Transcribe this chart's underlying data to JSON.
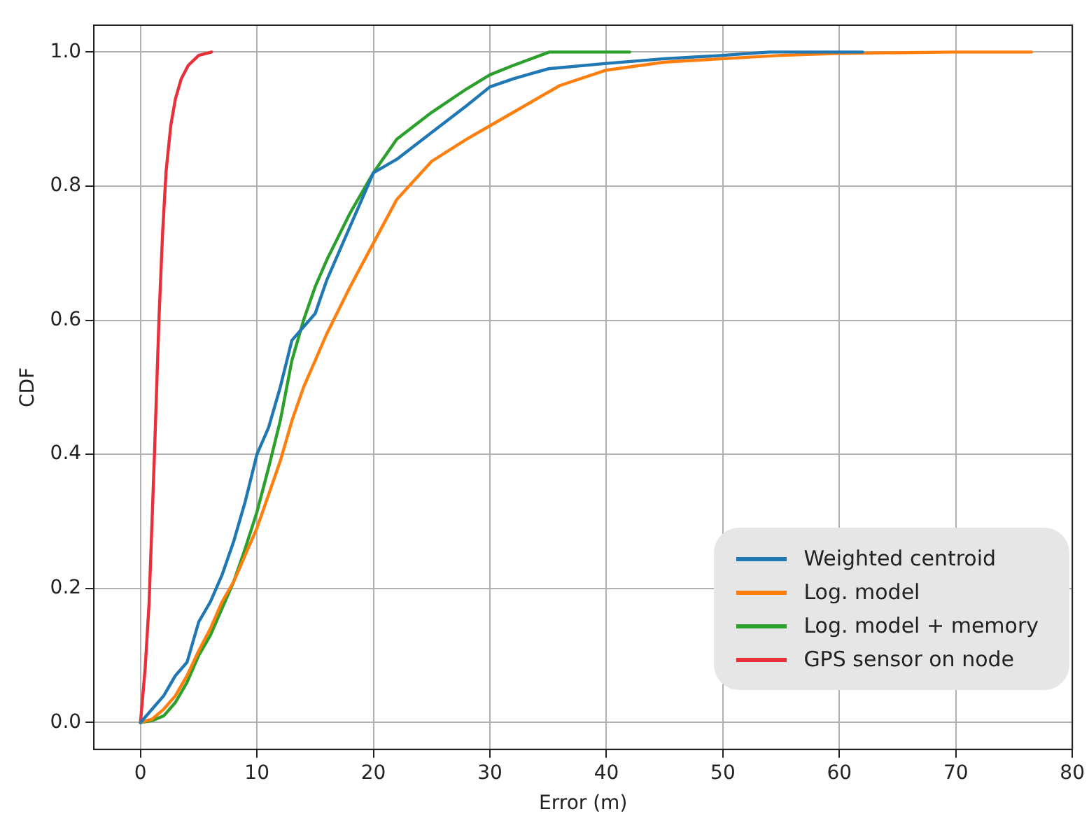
{
  "chart_data": {
    "type": "line",
    "xlabel": "Error (m)",
    "ylabel": "CDF",
    "xlim": [
      -4,
      80
    ],
    "xticks": [
      0,
      10,
      20,
      30,
      40,
      50,
      60,
      70,
      80
    ],
    "ylim": [
      -0.04,
      1.04
    ],
    "yticks": [
      {
        "value": 0,
        "label": "0.0"
      },
      {
        "value": 0.2,
        "label": "0.2"
      },
      {
        "value": 0.4,
        "label": "0.4"
      },
      {
        "value": 0.6,
        "label": "0.6"
      },
      {
        "value": 0.8,
        "label": "0.8"
      },
      {
        "value": 1,
        "label": "1.0"
      }
    ],
    "grid": true,
    "legend": "bottom right",
    "marker": "none",
    "line_style": "solid",
    "series": [
      {
        "name": "Weighted centroid",
        "color": "#1f77b4",
        "x": [
          0,
          1,
          2,
          3,
          4,
          5,
          6,
          7,
          8,
          9,
          10,
          11,
          12,
          13,
          14,
          15,
          16,
          18,
          20,
          22,
          25,
          28,
          30,
          32,
          35,
          40,
          45,
          50,
          54,
          62
        ],
        "values": [
          0,
          0.02,
          0.04,
          0.07,
          0.09,
          0.15,
          0.18,
          0.22,
          0.27,
          0.33,
          0.4,
          0.44,
          0.5,
          0.57,
          0.59,
          0.61,
          0.66,
          0.74,
          0.82,
          0.84,
          0.88,
          0.92,
          0.948,
          0.96,
          0.975,
          0.983,
          0.99,
          0.995,
          1,
          1
        ]
      },
      {
        "name": "Log. model",
        "color": "#ff7f0e",
        "x": [
          0,
          1,
          2,
          3,
          4,
          5,
          6,
          7,
          8,
          9,
          10,
          11,
          12,
          13,
          14,
          15,
          16,
          18,
          20,
          22,
          25,
          28,
          30,
          33,
          36,
          40,
          45,
          50,
          55,
          60,
          70,
          76.5
        ],
        "values": [
          0,
          0.005,
          0.02,
          0.04,
          0.07,
          0.107,
          0.14,
          0.18,
          0.21,
          0.25,
          0.29,
          0.34,
          0.39,
          0.45,
          0.5,
          0.54,
          0.58,
          0.65,
          0.715,
          0.78,
          0.837,
          0.87,
          0.89,
          0.92,
          0.95,
          0.973,
          0.985,
          0.99,
          0.995,
          0.998,
          1,
          1
        ]
      },
      {
        "name": "Log. model + memory",
        "color": "#2ca02c",
        "x": [
          0,
          1,
          2,
          3,
          4,
          5,
          6,
          7,
          8,
          9,
          10,
          11,
          12,
          13,
          14,
          15,
          16,
          18,
          20,
          22,
          25,
          28,
          30,
          32,
          35.1,
          42
        ],
        "values": [
          0,
          0.003,
          0.01,
          0.03,
          0.06,
          0.1,
          0.13,
          0.17,
          0.21,
          0.26,
          0.314,
          0.38,
          0.45,
          0.54,
          0.6,
          0.65,
          0.69,
          0.76,
          0.82,
          0.87,
          0.91,
          0.945,
          0.966,
          0.98,
          1,
          1
        ]
      },
      {
        "name": "GPS sensor on node",
        "color": "#e8303a",
        "x": [
          0,
          0.4,
          0.74,
          1.2,
          1.6,
          1.9,
          2.2,
          2.6,
          3.0,
          3.5,
          4.1,
          5,
          6.1
        ],
        "values": [
          0,
          0.08,
          0.178,
          0.4,
          0.607,
          0.73,
          0.822,
          0.89,
          0.93,
          0.96,
          0.98,
          0.995,
          1
        ]
      }
    ]
  }
}
